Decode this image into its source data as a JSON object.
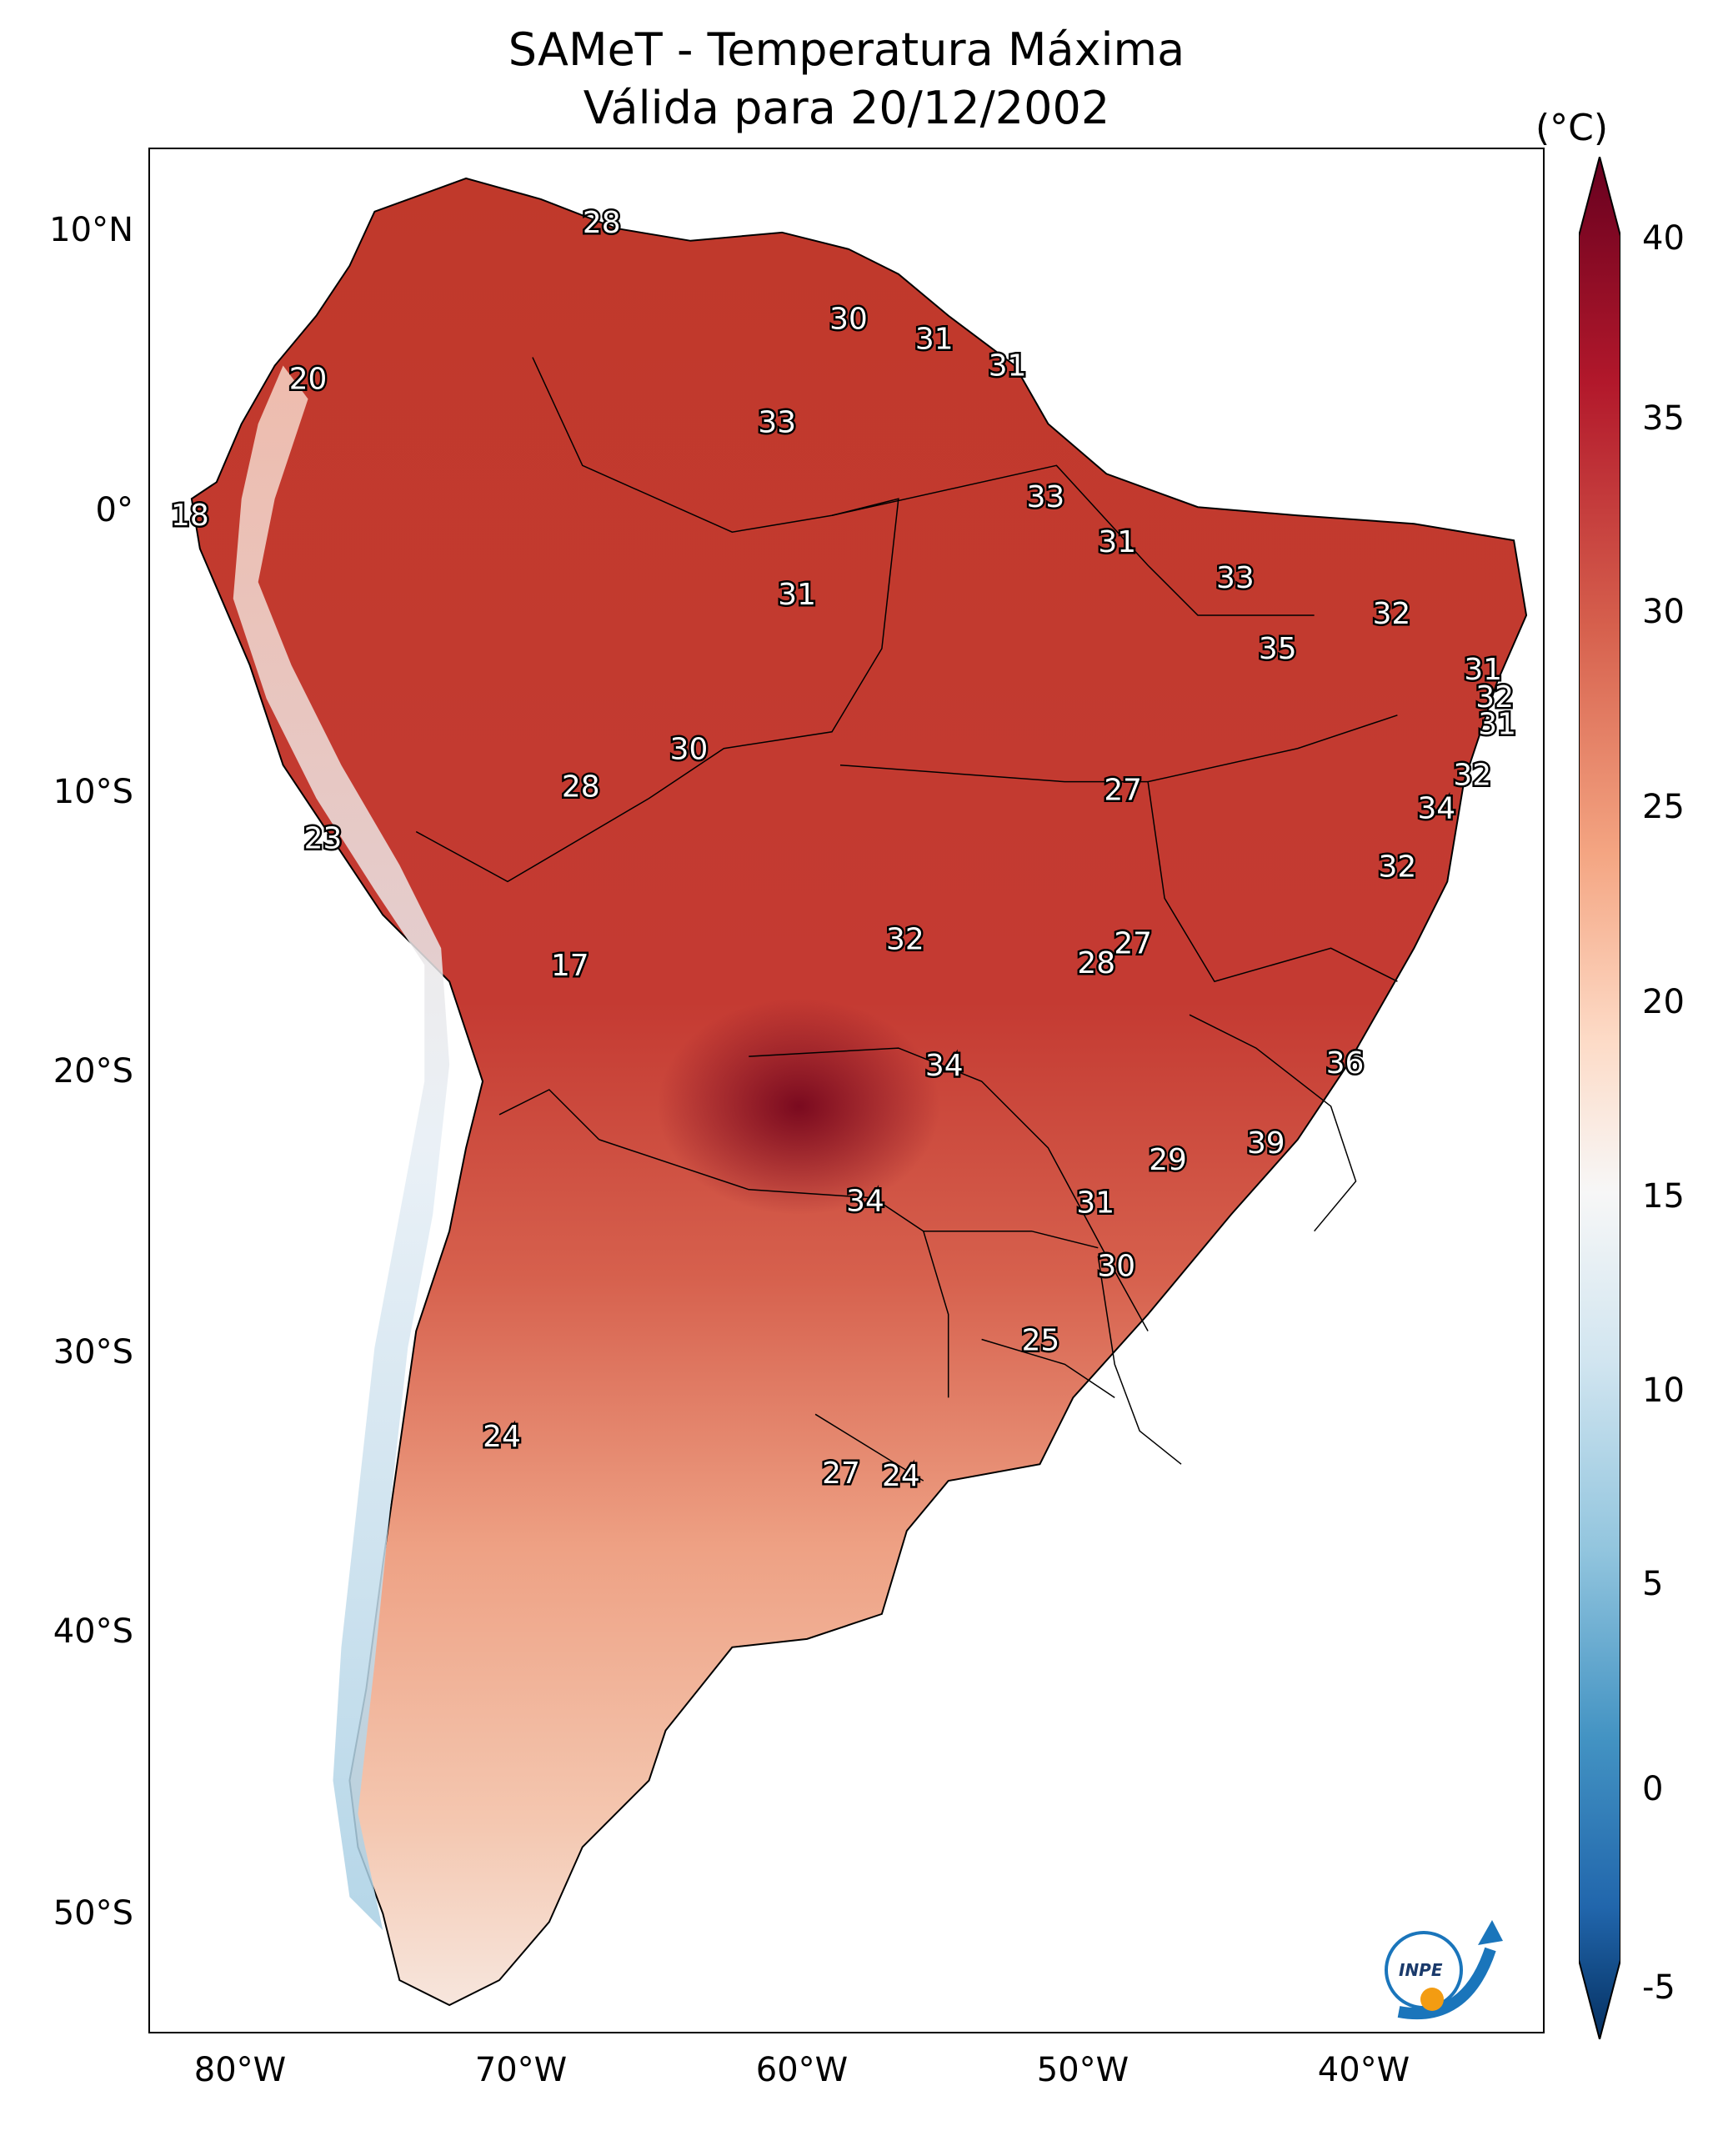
{
  "title": {
    "line1": "SAMeT - Temperatura Máxima",
    "line2": "Válida para 20/12/2002"
  },
  "colorbar": {
    "unit": "(°C)",
    "ticks": [
      "40",
      "35",
      "30",
      "25",
      "20",
      "15",
      "10",
      "5",
      "0",
      "-5"
    ],
    "colors": {
      "hot": "#67001f",
      "warm": "#d6604d",
      "mild": "#f4a582",
      "neutral": "#f7f7f7",
      "cool": "#92c5de",
      "cold": "#2166ac",
      "coldest": "#053061"
    }
  },
  "axes": {
    "lat_labels": [
      "10°N",
      "0°",
      "10°S",
      "20°S",
      "30°S",
      "40°S",
      "50°S"
    ],
    "lon_labels": [
      "80°W",
      "70°W",
      "60°W",
      "50°W",
      "40°W"
    ]
  },
  "temperature_labels": [
    "28",
    "30",
    "31",
    "31",
    "20",
    "33",
    "33",
    "18",
    "31",
    "31",
    "33",
    "32",
    "35",
    "31",
    "32",
    "31",
    "30",
    "28",
    "32",
    "27",
    "34",
    "23",
    "32",
    "27",
    "28",
    "17",
    "32",
    "34",
    "36",
    "39",
    "29",
    "34",
    "31",
    "30",
    "25",
    "24",
    "27",
    "24"
  ],
  "logo": {
    "text": "INPE",
    "icon": "inpe-logo-icon"
  }
}
